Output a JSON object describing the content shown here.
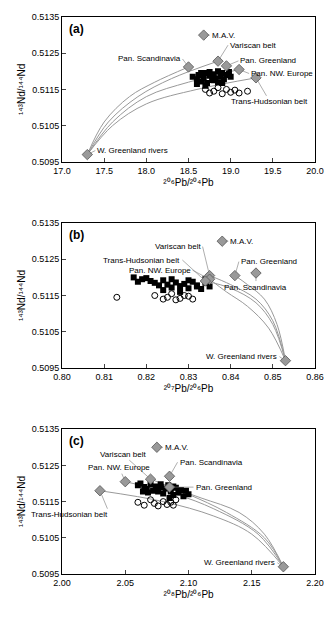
{
  "chart_data": [
    {
      "type": "scatter",
      "title": "(a)",
      "x_label": "²⁰⁶Pb/²⁰⁴Pb",
      "y_label": "¹⁴³Nd/¹⁴⁴Nd",
      "xlim": [
        17.0,
        20.0
      ],
      "xticks": [
        {
          "value": 17.0,
          "label": "17.0"
        },
        17.5,
        {
          "value": 18.0,
          "label": "18.0"
        },
        18.5,
        {
          "value": 19.0,
          "label": "19.0"
        },
        19.5,
        {
          "value": 20.0,
          "label": "20.0"
        }
      ],
      "ylim": [
        0.5095,
        0.5135
      ],
      "yticks": [
        0.5095,
        0.5105,
        0.5115,
        0.5125,
        0.5135
      ],
      "series": [
        {
          "type": "line",
          "color": "#999999",
          "line_style": "solid",
          "x": [
            17.3,
            17.5,
            17.8,
            18.1,
            18.5
          ],
          "values": [
            0.5097,
            0.5106,
            0.5113,
            0.5117,
            0.51212
          ]
        },
        {
          "type": "line",
          "color": "#999999",
          "line_style": "solid",
          "x": [
            17.3,
            17.55,
            17.9,
            18.3,
            18.85
          ],
          "values": [
            0.5097,
            0.5106,
            0.5113,
            0.5118,
            0.51228
          ]
        },
        {
          "type": "line",
          "color": "#999999",
          "line_style": "solid",
          "x": [
            17.3,
            17.6,
            18.0,
            18.5,
            19.1
          ],
          "values": [
            0.5097,
            0.5106,
            0.5113,
            0.5117,
            0.51205
          ]
        },
        {
          "type": "line",
          "color": "#999999",
          "line_style": "solid",
          "x": [
            17.3,
            17.6,
            18.0,
            18.6,
            19.3
          ],
          "values": [
            0.5097,
            0.5105,
            0.5111,
            0.5115,
            0.51182
          ]
        },
        {
          "type": "scatter",
          "marker": "square",
          "color": "#000000",
          "x": [
            18.55,
            18.6,
            18.62,
            18.65,
            18.68,
            18.7,
            18.72,
            18.75,
            18.78,
            18.8,
            18.82,
            18.85,
            18.88,
            18.9,
            18.92,
            18.95,
            18.98,
            19.0,
            18.6,
            18.7,
            18.8,
            18.9,
            18.65,
            18.75,
            18.85
          ],
          "values": [
            0.51185,
            0.51178,
            0.5119,
            0.51172,
            0.51182,
            0.51195,
            0.51168,
            0.51188,
            0.51176,
            0.51192,
            0.5118,
            0.5117,
            0.51186,
            0.51195,
            0.51178,
            0.5119,
            0.51198,
            0.51185,
            0.51165,
            0.5116,
            0.51175,
            0.51168,
            0.51195,
            0.51198,
            0.512
          ]
        },
        {
          "type": "scatter",
          "marker": "circle-open",
          "color": "#000000",
          "x": [
            18.7,
            18.75,
            18.8,
            18.85,
            18.9,
            18.95,
            19.0,
            19.05,
            19.1,
            19.2
          ],
          "values": [
            0.5115,
            0.5114,
            0.51145,
            0.51155,
            0.51138,
            0.5115,
            0.51142,
            0.51148,
            0.5114,
            0.51145
          ]
        },
        {
          "type": "scatter",
          "marker": "diamond",
          "color": "#999999",
          "x": [
            18.68,
            18.85,
            18.95,
            19.1,
            18.5,
            19.3,
            17.3
          ],
          "values": [
            0.513,
            0.51228,
            0.51215,
            0.51205,
            0.51212,
            0.51182,
            0.5097
          ],
          "labels": [
            "M.A.V.",
            "Variscan belt",
            "Pan. Greenland",
            "Pan. NW. Europe",
            "Pan. Scandinavia",
            "Trans-Hudsonian belt",
            "W. Greenland rivers"
          ]
        }
      ]
    },
    {
      "type": "scatter",
      "title": "(b)",
      "x_label": "²⁰⁷Pb/²⁰⁶Pb",
      "y_label": "¹⁴³Nd/¹⁴⁴Nd",
      "xlim": [
        0.8,
        0.86
      ],
      "xticks": [
        {
          "value": 0.8,
          "label": "0.80"
        },
        0.81,
        0.82,
        0.83,
        0.84,
        0.85,
        {
          "value": 0.86,
          "label": "0.86"
        }
      ],
      "ylim": [
        0.5095,
        0.5135
      ],
      "yticks": [
        0.5095,
        0.5105,
        0.5115,
        0.5125,
        0.5135
      ],
      "series": [
        {
          "type": "line",
          "color": "#999999",
          "line_style": "solid",
          "x": [
            0.853,
            0.85,
            0.846,
            0.84,
            0.834
          ],
          "values": [
            0.5097,
            0.5107,
            0.5113,
            0.5117,
            0.5119
          ]
        },
        {
          "type": "line",
          "color": "#999999",
          "line_style": "solid",
          "x": [
            0.853,
            0.849,
            0.844,
            0.839,
            0.835
          ],
          "values": [
            0.5097,
            0.5106,
            0.5112,
            0.5116,
            0.51195
          ]
        },
        {
          "type": "line",
          "color": "#999999",
          "line_style": "solid",
          "x": [
            0.853,
            0.85,
            0.846,
            0.84,
            0.835
          ],
          "values": [
            0.5097,
            0.5108,
            0.5114,
            0.5118,
            0.51205
          ]
        },
        {
          "type": "line",
          "color": "#999999",
          "line_style": "solid",
          "x": [
            0.853,
            0.851,
            0.848,
            0.844,
            0.841
          ],
          "values": [
            0.5097,
            0.5107,
            0.5114,
            0.5118,
            0.51205
          ]
        },
        {
          "type": "scatter",
          "marker": "square",
          "color": "#000000",
          "x": [
            0.817,
            0.819,
            0.821,
            0.822,
            0.823,
            0.824,
            0.825,
            0.826,
            0.827,
            0.828,
            0.829,
            0.83,
            0.831,
            0.832,
            0.833,
            0.834,
            0.835,
            0.818,
            0.82,
            0.824,
            0.826,
            0.828,
            0.83,
            0.832,
            0.834
          ],
          "values": [
            0.512,
            0.51195,
            0.5119,
            0.51185,
            0.51178,
            0.51192,
            0.5118,
            0.51172,
            0.51186,
            0.51176,
            0.51182,
            0.5117,
            0.51188,
            0.51178,
            0.51168,
            0.51185,
            0.51175,
            0.51188,
            0.51198,
            0.51165,
            0.51195,
            0.5116,
            0.51192,
            0.51175,
            0.51195
          ]
        },
        {
          "type": "scatter",
          "marker": "circle-open",
          "color": "#000000",
          "x": [
            0.813,
            0.822,
            0.824,
            0.825,
            0.826,
            0.827,
            0.828,
            0.829,
            0.83,
            0.831
          ],
          "values": [
            0.51145,
            0.5115,
            0.5114,
            0.51145,
            0.51155,
            0.51138,
            0.51142,
            0.5115,
            0.51148,
            0.5114
          ]
        },
        {
          "type": "scatter",
          "marker": "diamond",
          "color": "#999999",
          "x": [
            0.838,
            0.835,
            0.841,
            0.835,
            0.846,
            0.834,
            0.853
          ],
          "values": [
            0.513,
            0.51205,
            0.51205,
            0.51195,
            0.51212,
            0.5119,
            0.5097
          ],
          "labels": [
            "M.A.V.",
            "Variscan belt",
            "Pan. Greenland",
            "Pan. NW. Europe",
            "Pan. Scandinavia",
            "Trans-Hudsonian belt",
            "W. Greenland rivers"
          ]
        }
      ]
    },
    {
      "type": "scatter",
      "title": "(c)",
      "x_label": "²⁰⁸Pb/²⁰⁶Pb",
      "y_label": "¹⁴³Nd/¹⁴⁴Nd",
      "xlim": [
        2.0,
        2.2
      ],
      "xticks": [
        {
          "value": 2.0,
          "label": "2.00"
        },
        2.05,
        {
          "value": 2.1,
          "label": "2.10"
        },
        2.15,
        {
          "value": 2.2,
          "label": "2.20"
        }
      ],
      "ylim": [
        0.5095,
        0.5135
      ],
      "yticks": [
        0.5095,
        0.5105,
        0.5115,
        0.5125,
        0.5135
      ],
      "series": [
        {
          "type": "line",
          "color": "#999999",
          "line_style": "solid",
          "x": [
            2.175,
            2.15,
            2.12,
            2.08,
            2.03
          ],
          "values": [
            0.5097,
            0.5106,
            0.5111,
            0.5115,
            0.5118
          ]
        },
        {
          "type": "line",
          "color": "#999999",
          "line_style": "solid",
          "x": [
            2.175,
            2.155,
            2.12,
            2.09,
            2.05
          ],
          "values": [
            0.5097,
            0.5106,
            0.5113,
            0.5117,
            0.51205
          ]
        },
        {
          "type": "line",
          "color": "#999999",
          "line_style": "solid",
          "x": [
            2.175,
            2.16,
            2.13,
            2.1,
            2.07
          ],
          "values": [
            0.5097,
            0.5105,
            0.5112,
            0.5117,
            0.51212
          ]
        },
        {
          "type": "line",
          "color": "#999999",
          "line_style": "solid",
          "x": [
            2.175,
            2.16,
            2.14,
            2.11,
            2.085
          ],
          "values": [
            0.5097,
            0.5106,
            0.5112,
            0.5116,
            0.5119
          ]
        },
        {
          "type": "scatter",
          "marker": "square",
          "color": "#000000",
          "x": [
            2.06,
            2.062,
            2.065,
            2.067,
            2.07,
            2.072,
            2.074,
            2.076,
            2.078,
            2.08,
            2.082,
            2.084,
            2.086,
            2.088,
            2.09,
            2.092,
            2.094,
            2.096,
            2.098,
            2.1,
            2.068,
            2.078,
            2.088,
            2.064,
            2.085
          ],
          "values": [
            0.51195,
            0.512,
            0.5119,
            0.51185,
            0.51198,
            0.5118,
            0.51192,
            0.51178,
            0.5119,
            0.51172,
            0.51186,
            0.51195,
            0.51178,
            0.51168,
            0.51188,
            0.51175,
            0.51182,
            0.51165,
            0.5118,
            0.5117,
            0.51175,
            0.51198,
            0.51192,
            0.51178,
            0.5116
          ]
        },
        {
          "type": "scatter",
          "marker": "circle-open",
          "color": "#000000",
          "x": [
            2.06,
            2.065,
            2.07,
            2.073,
            2.076,
            2.08,
            2.083,
            2.086,
            2.088,
            2.09
          ],
          "values": [
            0.51148,
            0.5114,
            0.51155,
            0.51145,
            0.51138,
            0.5115,
            0.51142,
            0.51148,
            0.5114,
            0.51155
          ]
        },
        {
          "type": "scatter",
          "marker": "diamond",
          "color": "#999999",
          "x": [
            2.075,
            2.07,
            2.085,
            2.05,
            2.085,
            2.03,
            2.175
          ],
          "values": [
            0.513,
            0.51212,
            0.5119,
            0.51205,
            0.5122,
            0.5118,
            0.5097
          ],
          "labels": [
            "M.A.V.",
            "Variscan belt",
            "Pan. Greenland",
            "Pan. NW. Europe",
            "Pan. Scandinavia",
            "Trans-Hudsonian belt",
            "W. Greenland rivers"
          ]
        }
      ]
    }
  ]
}
